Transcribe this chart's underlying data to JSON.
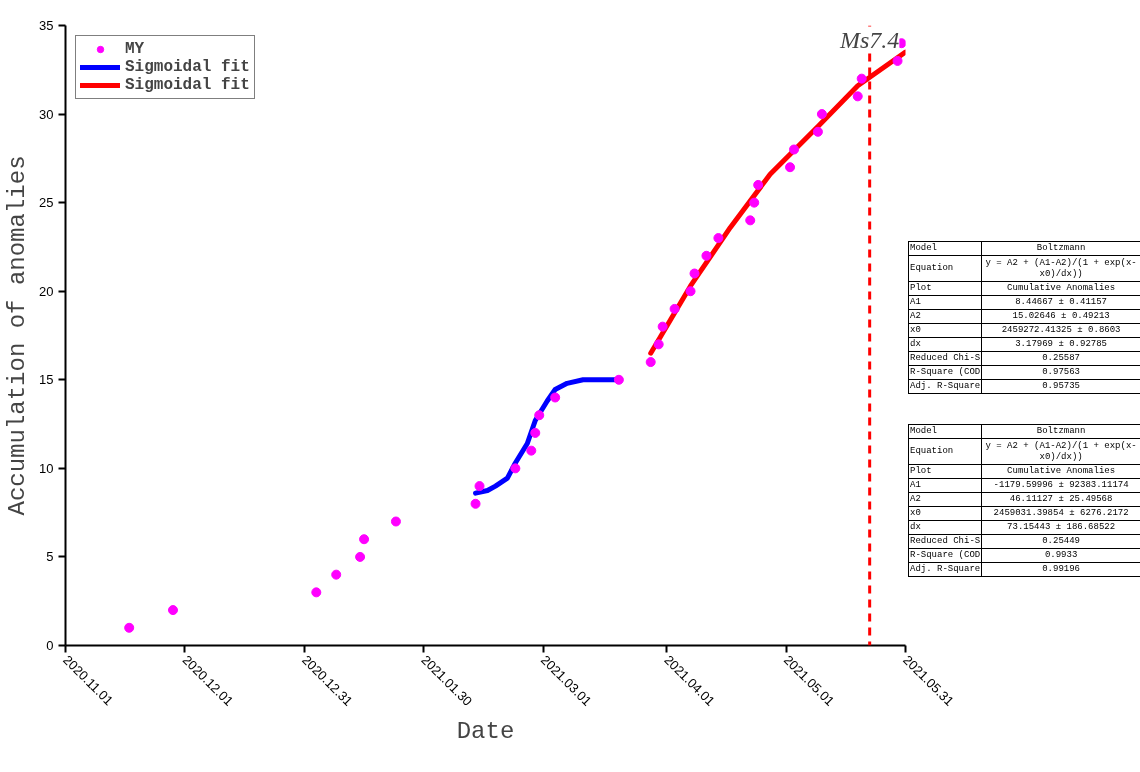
{
  "chart_data": {
    "type": "scatter",
    "xlabel": "Date",
    "ylabel": "Accumulation of anomalies",
    "xlim": [
      "2020-11-01",
      "2021-05-31"
    ],
    "xticks": [
      {
        "value": "2020-11-01",
        "label": "2020.11.01"
      },
      {
        "value": "2020-12-01",
        "label": "2020.12.01"
      },
      {
        "value": "2020-12-31",
        "label": "2020.12.31"
      },
      {
        "value": "2021-01-30",
        "label": "2021.01.30"
      },
      {
        "value": "2021-03-01",
        "label": "2021.03.01"
      },
      {
        "value": "2021-04-01",
        "label": "2021.04.01"
      },
      {
        "value": "2021-05-01",
        "label": "2021.05.01"
      },
      {
        "value": "2021-05-31",
        "label": "2021.05.31"
      }
    ],
    "ylim": [
      0,
      35
    ],
    "yticks": [
      0,
      5,
      10,
      15,
      20,
      25,
      30,
      35
    ],
    "grid": false,
    "legend": "top left",
    "series": [
      {
        "name": "MY",
        "marker": "circle",
        "color": "#ff00ff",
        "x": [
          "2020-11-17",
          "2020-11-28",
          "2021-01-03",
          "2021-01-08",
          "2021-01-14",
          "2021-01-15",
          "2021-01-23",
          "2021-02-12",
          "2021-02-13",
          "2021-02-22",
          "2021-02-26",
          "2021-02-27",
          "2021-02-28",
          "2021-03-04",
          "2021-03-20",
          "2021-03-28",
          "2021-03-30",
          "2021-03-31",
          "2021-04-03",
          "2021-04-07",
          "2021-04-08",
          "2021-04-11",
          "2021-04-14",
          "2021-04-22",
          "2021-04-23",
          "2021-04-24",
          "2021-05-02",
          "2021-05-03",
          "2021-05-09",
          "2021-05-10",
          "2021-05-19",
          "2021-05-20",
          "2021-05-29",
          "2021-05-30"
        ],
        "values": [
          1,
          2,
          3,
          4,
          5,
          6,
          7,
          8,
          9,
          10,
          11,
          12,
          13,
          14,
          15,
          16,
          17,
          18,
          19,
          20,
          21,
          22,
          23,
          24,
          25,
          26,
          27,
          28,
          29,
          30,
          31,
          32,
          33,
          34
        ]
      },
      {
        "name": "Sigmoidal fit",
        "type": "line",
        "color": "#0000ff",
        "line_style": "solid",
        "marker": "none",
        "x": [
          "2021-02-12",
          "2021-02-15",
          "2021-02-17",
          "2021-02-20",
          "2021-02-22",
          "2021-02-25",
          "2021-02-27",
          "2021-03-02",
          "2021-03-04",
          "2021-03-07",
          "2021-03-11",
          "2021-03-20"
        ],
        "values": [
          8.6,
          8.75,
          9.0,
          9.45,
          10.3,
          11.4,
          12.7,
          13.8,
          14.45,
          14.8,
          15.0,
          15.0
        ]
      },
      {
        "name": "Sigmoidal fit",
        "type": "line",
        "color": "#ff0000",
        "line_style": "solid",
        "marker": "none",
        "x": [
          "2021-03-28",
          "2021-04-07",
          "2021-04-17",
          "2021-04-27",
          "2021-05-09",
          "2021-05-19",
          "2021-05-31"
        ],
        "values": [
          16.5,
          20.3,
          23.6,
          26.6,
          29.3,
          31.6,
          33.5
        ]
      }
    ],
    "ref_lines": [
      {
        "axis": "x",
        "value": "2021-05-22",
        "label": "Ms7.4",
        "color": "#ff0000",
        "line_style": "dashed"
      }
    ],
    "annotations": [
      "Model",
      "Boltzmann",
      "Equation",
      "y = A2 + (A1-A2)/(1 + exp(x-x0)/dx))",
      "Plot",
      "Cumulative Anomalies",
      "A1",
      "8.44667 ± 0.41157",
      "A2",
      "15.02646 ± 0.49213",
      "x0",
      "2459272.41325 ± 0.8603",
      "dx",
      "3.17969 ± 0.92785",
      "Reduced Chi-S",
      "0.25587",
      "R-Square (COD",
      "0.97563",
      "Adj. R-Square",
      "0.95735",
      "Model",
      "Boltzmann",
      "Equation",
      "y = A2 + (A1-A2)/(1 + exp(x-x0)/dx))",
      "Plot",
      "Cumulative Anomalies",
      "A1",
      "-1179.59996 ± 92383.11174",
      "A2",
      "46.11127 ± 25.49568",
      "x0",
      "2459031.39854 ± 6276.2172",
      "dx",
      "73.15443 ± 186.68522",
      "Reduced Chi-S",
      "0.25449",
      "R-Square (COD",
      "0.9933",
      "Adj. R-Square",
      "0.99196"
    ]
  }
}
